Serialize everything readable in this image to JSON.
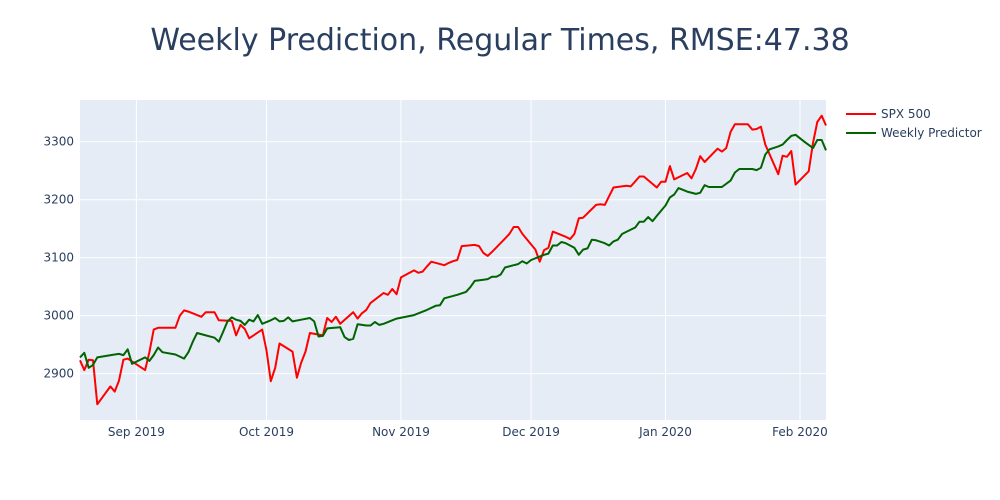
{
  "chart_data": {
    "type": "line",
    "title": "Weekly Prediction, Regular Times, RMSE:47.38",
    "xlabel": "",
    "ylabel": "",
    "x_range": [
      "2019-08-19",
      "2020-02-07"
    ],
    "ylim": [
      2820,
      3372
    ],
    "x_ticks": [
      {
        "date": "2019-09-01",
        "label": "Sep 2019"
      },
      {
        "date": "2019-10-01",
        "label": "Oct 2019"
      },
      {
        "date": "2019-11-01",
        "label": "Nov 2019"
      },
      {
        "date": "2019-12-01",
        "label": "Dec 2019"
      },
      {
        "date": "2020-01-01",
        "label": "Jan 2020"
      },
      {
        "date": "2020-02-01",
        "label": "Feb 2020"
      }
    ],
    "y_ticks": [
      2900,
      3000,
      3100,
      3200,
      3300
    ],
    "grid": true,
    "legend_position": "top-right outside",
    "series": [
      {
        "name": "SPX 500",
        "color": "#ff0000",
        "points": [
          [
            "2019-08-19",
            2923
          ],
          [
            "2019-08-20",
            2906
          ],
          [
            "2019-08-21",
            2924
          ],
          [
            "2019-08-22",
            2923
          ],
          [
            "2019-08-23",
            2847
          ],
          [
            "2019-08-26",
            2878
          ],
          [
            "2019-08-27",
            2869
          ],
          [
            "2019-08-28",
            2888
          ],
          [
            "2019-08-29",
            2924
          ],
          [
            "2019-08-30",
            2926
          ],
          [
            "2019-09-03",
            2906
          ],
          [
            "2019-09-04",
            2937
          ],
          [
            "2019-09-05",
            2976
          ],
          [
            "2019-09-06",
            2979
          ],
          [
            "2019-09-09",
            2979
          ],
          [
            "2019-09-10",
            2979
          ],
          [
            "2019-09-11",
            3000
          ],
          [
            "2019-09-12",
            3009
          ],
          [
            "2019-09-13",
            3007
          ],
          [
            "2019-09-16",
            2998
          ],
          [
            "2019-09-17",
            3006
          ],
          [
            "2019-09-18",
            3006
          ],
          [
            "2019-09-19",
            3006
          ],
          [
            "2019-09-20",
            2992
          ],
          [
            "2019-09-23",
            2991
          ],
          [
            "2019-09-24",
            2966
          ],
          [
            "2019-09-25",
            2984
          ],
          [
            "2019-09-26",
            2977
          ],
          [
            "2019-09-27",
            2961
          ],
          [
            "2019-09-30",
            2976
          ],
          [
            "2019-10-01",
            2940
          ],
          [
            "2019-10-02",
            2887
          ],
          [
            "2019-10-03",
            2910
          ],
          [
            "2019-10-04",
            2952
          ],
          [
            "2019-10-07",
            2938
          ],
          [
            "2019-10-08",
            2893
          ],
          [
            "2019-10-09",
            2919
          ],
          [
            "2019-10-10",
            2938
          ],
          [
            "2019-10-11",
            2970
          ],
          [
            "2019-10-14",
            2966
          ],
          [
            "2019-10-15",
            2996
          ],
          [
            "2019-10-16",
            2989
          ],
          [
            "2019-10-17",
            2998
          ],
          [
            "2019-10-18",
            2986
          ],
          [
            "2019-10-21",
            3006
          ],
          [
            "2019-10-22",
            2995
          ],
          [
            "2019-10-23",
            3004
          ],
          [
            "2019-10-24",
            3010
          ],
          [
            "2019-10-25",
            3022
          ],
          [
            "2019-10-28",
            3039
          ],
          [
            "2019-10-29",
            3036
          ],
          [
            "2019-10-30",
            3046
          ],
          [
            "2019-10-31",
            3037
          ],
          [
            "2019-11-01",
            3066
          ],
          [
            "2019-11-04",
            3078
          ],
          [
            "2019-11-05",
            3074
          ],
          [
            "2019-11-06",
            3076
          ],
          [
            "2019-11-07",
            3085
          ],
          [
            "2019-11-08",
            3093
          ],
          [
            "2019-11-11",
            3087
          ],
          [
            "2019-11-12",
            3091
          ],
          [
            "2019-11-13",
            3094
          ],
          [
            "2019-11-14",
            3096
          ],
          [
            "2019-11-15",
            3120
          ],
          [
            "2019-11-18",
            3122
          ],
          [
            "2019-11-19",
            3120
          ],
          [
            "2019-11-20",
            3108
          ],
          [
            "2019-11-21",
            3103
          ],
          [
            "2019-11-22",
            3110
          ],
          [
            "2019-11-25",
            3133
          ],
          [
            "2019-11-26",
            3141
          ],
          [
            "2019-11-27",
            3153
          ],
          [
            "2019-11-28",
            3153
          ],
          [
            "2019-11-29",
            3141
          ],
          [
            "2019-12-02",
            3114
          ],
          [
            "2019-12-03",
            3093
          ],
          [
            "2019-12-04",
            3113
          ],
          [
            "2019-12-05",
            3117
          ],
          [
            "2019-12-06",
            3145
          ],
          [
            "2019-12-09",
            3136
          ],
          [
            "2019-12-10",
            3132
          ],
          [
            "2019-12-11",
            3141
          ],
          [
            "2019-12-12",
            3168
          ],
          [
            "2019-12-13",
            3169
          ],
          [
            "2019-12-16",
            3191
          ],
          [
            "2019-12-17",
            3192
          ],
          [
            "2019-12-18",
            3191
          ],
          [
            "2019-12-19",
            3206
          ],
          [
            "2019-12-20",
            3221
          ],
          [
            "2019-12-23",
            3224
          ],
          [
            "2019-12-24",
            3223
          ],
          [
            "2019-12-26",
            3240
          ],
          [
            "2019-12-27",
            3240
          ],
          [
            "2019-12-30",
            3221
          ],
          [
            "2019-12-31",
            3231
          ],
          [
            "2020-01-01",
            3231
          ],
          [
            "2020-01-02",
            3258
          ],
          [
            "2020-01-03",
            3235
          ],
          [
            "2020-01-06",
            3246
          ],
          [
            "2020-01-07",
            3237
          ],
          [
            "2020-01-08",
            3253
          ],
          [
            "2020-01-09",
            3275
          ],
          [
            "2020-01-10",
            3265
          ],
          [
            "2020-01-13",
            3288
          ],
          [
            "2020-01-14",
            3283
          ],
          [
            "2020-01-15",
            3289
          ],
          [
            "2020-01-16",
            3317
          ],
          [
            "2020-01-17",
            3330
          ],
          [
            "2020-01-20",
            3330
          ],
          [
            "2020-01-21",
            3321
          ],
          [
            "2020-01-22",
            3322
          ],
          [
            "2020-01-23",
            3326
          ],
          [
            "2020-01-24",
            3295
          ],
          [
            "2020-01-27",
            3244
          ],
          [
            "2020-01-28",
            3276
          ],
          [
            "2020-01-29",
            3274
          ],
          [
            "2020-01-30",
            3284
          ],
          [
            "2020-01-31",
            3226
          ],
          [
            "2020-02-03",
            3249
          ],
          [
            "2020-02-04",
            3298
          ],
          [
            "2020-02-05",
            3334
          ],
          [
            "2020-02-06",
            3345
          ],
          [
            "2020-02-07",
            3328
          ]
        ]
      },
      {
        "name": "Weekly Predictor",
        "color": "#006400",
        "points": [
          [
            "2019-08-19",
            2928
          ],
          [
            "2019-08-20",
            2936
          ],
          [
            "2019-08-21",
            2910
          ],
          [
            "2019-08-22",
            2915
          ],
          [
            "2019-08-23",
            2928
          ],
          [
            "2019-08-27",
            2933
          ],
          [
            "2019-08-28",
            2934
          ],
          [
            "2019-08-29",
            2932
          ],
          [
            "2019-08-30",
            2942
          ],
          [
            "2019-08-31",
            2917
          ],
          [
            "2019-09-03",
            2928
          ],
          [
            "2019-09-04",
            2922
          ],
          [
            "2019-09-05",
            2932
          ],
          [
            "2019-09-06",
            2945
          ],
          [
            "2019-09-07",
            2937
          ],
          [
            "2019-09-10",
            2933
          ],
          [
            "2019-09-12",
            2926
          ],
          [
            "2019-09-13",
            2937
          ],
          [
            "2019-09-14",
            2955
          ],
          [
            "2019-09-15",
            2970
          ],
          [
            "2019-09-17",
            2966
          ],
          [
            "2019-09-19",
            2962
          ],
          [
            "2019-09-20",
            2955
          ],
          [
            "2019-09-21",
            2972
          ],
          [
            "2019-09-22",
            2990
          ],
          [
            "2019-09-23",
            2997
          ],
          [
            "2019-09-24",
            2993
          ],
          [
            "2019-09-25",
            2991
          ],
          [
            "2019-09-26",
            2984
          ],
          [
            "2019-09-27",
            2993
          ],
          [
            "2019-09-28",
            2990
          ],
          [
            "2019-09-29",
            3001
          ],
          [
            "2019-09-30",
            2986
          ],
          [
            "2019-10-02",
            2992
          ],
          [
            "2019-10-03",
            2996
          ],
          [
            "2019-10-04",
            2990
          ],
          [
            "2019-10-05",
            2991
          ],
          [
            "2019-10-06",
            2997
          ],
          [
            "2019-10-07",
            2990
          ],
          [
            "2019-10-09",
            2993
          ],
          [
            "2019-10-11",
            2996
          ],
          [
            "2019-10-12",
            2990
          ],
          [
            "2019-10-13",
            2964
          ],
          [
            "2019-10-14",
            2965
          ],
          [
            "2019-10-15",
            2978
          ],
          [
            "2019-10-18",
            2980
          ],
          [
            "2019-10-19",
            2963
          ],
          [
            "2019-10-20",
            2958
          ],
          [
            "2019-10-21",
            2960
          ],
          [
            "2019-10-22",
            2985
          ],
          [
            "2019-10-24",
            2983
          ],
          [
            "2019-10-25",
            2983
          ],
          [
            "2019-10-26",
            2989
          ],
          [
            "2019-10-27",
            2984
          ],
          [
            "2019-10-28",
            2986
          ],
          [
            "2019-10-31",
            2995
          ],
          [
            "2019-11-04",
            3001
          ],
          [
            "2019-11-07",
            3010
          ],
          [
            "2019-11-09",
            3017
          ],
          [
            "2019-11-10",
            3018
          ],
          [
            "2019-11-11",
            3030
          ],
          [
            "2019-11-14",
            3036
          ],
          [
            "2019-11-16",
            3041
          ],
          [
            "2019-11-17",
            3049
          ],
          [
            "2019-11-18",
            3060
          ],
          [
            "2019-11-20",
            3062
          ],
          [
            "2019-11-21",
            3063
          ],
          [
            "2019-11-22",
            3067
          ],
          [
            "2019-11-23",
            3067
          ],
          [
            "2019-11-24",
            3071
          ],
          [
            "2019-11-25",
            3083
          ],
          [
            "2019-11-27",
            3087
          ],
          [
            "2019-11-28",
            3089
          ],
          [
            "2019-11-29",
            3094
          ],
          [
            "2019-11-30",
            3090
          ],
          [
            "2019-12-01",
            3096
          ],
          [
            "2019-12-04",
            3105
          ],
          [
            "2019-12-05",
            3107
          ],
          [
            "2019-12-06",
            3121
          ],
          [
            "2019-12-07",
            3121
          ],
          [
            "2019-12-08",
            3127
          ],
          [
            "2019-12-09",
            3125
          ],
          [
            "2019-12-11",
            3117
          ],
          [
            "2019-12-12",
            3105
          ],
          [
            "2019-12-13",
            3114
          ],
          [
            "2019-12-14",
            3116
          ],
          [
            "2019-12-15",
            3131
          ],
          [
            "2019-12-16",
            3130
          ],
          [
            "2019-12-18",
            3125
          ],
          [
            "2019-12-19",
            3121
          ],
          [
            "2019-12-20",
            3128
          ],
          [
            "2019-12-21",
            3131
          ],
          [
            "2019-12-22",
            3141
          ],
          [
            "2019-12-25",
            3152
          ],
          [
            "2019-12-26",
            3162
          ],
          [
            "2019-12-27",
            3162
          ],
          [
            "2019-12-28",
            3170
          ],
          [
            "2019-12-29",
            3163
          ],
          [
            "2019-12-30",
            3172
          ],
          [
            "2020-01-01",
            3190
          ],
          [
            "2020-01-02",
            3204
          ],
          [
            "2020-01-03",
            3209
          ],
          [
            "2020-01-04",
            3220
          ],
          [
            "2020-01-06",
            3214
          ],
          [
            "2020-01-08",
            3210
          ],
          [
            "2020-01-09",
            3212
          ],
          [
            "2020-01-10",
            3225
          ],
          [
            "2020-01-11",
            3222
          ],
          [
            "2020-01-14",
            3222
          ],
          [
            "2020-01-16",
            3233
          ],
          [
            "2020-01-17",
            3247
          ],
          [
            "2020-01-18",
            3253
          ],
          [
            "2020-01-21",
            3253
          ],
          [
            "2020-01-22",
            3251
          ],
          [
            "2020-01-23",
            3255
          ],
          [
            "2020-01-24",
            3278
          ],
          [
            "2020-01-25",
            3287
          ],
          [
            "2020-01-27",
            3292
          ],
          [
            "2020-01-28",
            3295
          ],
          [
            "2020-01-29",
            3303
          ],
          [
            "2020-01-30",
            3310
          ],
          [
            "2020-01-31",
            3312
          ],
          [
            "2020-02-02",
            3300
          ],
          [
            "2020-02-04",
            3289
          ],
          [
            "2020-02-05",
            3303
          ],
          [
            "2020-02-06",
            3303
          ],
          [
            "2020-02-07",
            3285
          ]
        ]
      }
    ]
  }
}
